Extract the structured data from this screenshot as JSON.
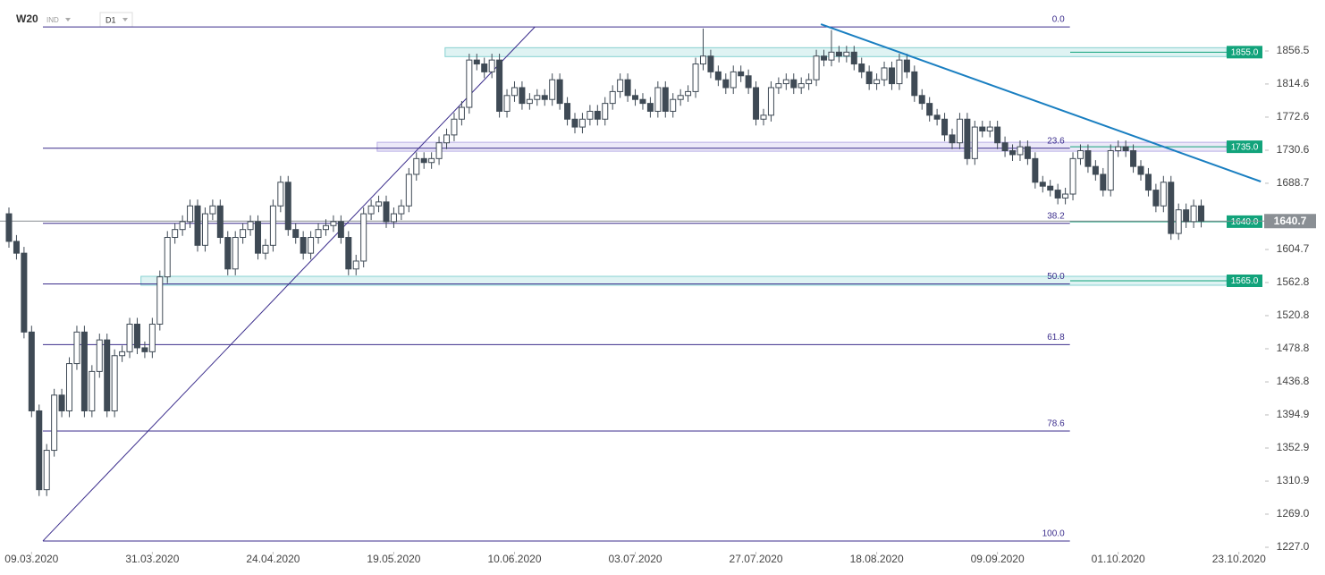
{
  "chart_data": {
    "type": "candlestick",
    "symbol": "W20",
    "market": "IND",
    "interval": "D1",
    "ylim": [
      1223.6,
      1909.8
    ],
    "yticks": [
      {
        "value": 1227.0,
        "label": "1227.0"
      },
      {
        "value": 1269.0,
        "label": "1269.0"
      },
      {
        "value": 1310.9,
        "label": "1310.9"
      },
      {
        "value": 1352.9,
        "label": "1352.9"
      },
      {
        "value": 1394.9,
        "label": "1394.9"
      },
      {
        "value": 1436.8,
        "label": "1436.8"
      },
      {
        "value": 1478.8,
        "label": "1478.8"
      },
      {
        "value": 1520.8,
        "label": "1520.8"
      },
      {
        "value": 1562.8,
        "label": "1562.8"
      },
      {
        "value": 1604.7,
        "label": "1604.7"
      },
      {
        "value": 1688.7,
        "label": "1688.7"
      },
      {
        "value": 1730.6,
        "label": "1730.6"
      },
      {
        "value": 1772.6,
        "label": "1772.6"
      },
      {
        "value": 1814.6,
        "label": "1814.6"
      },
      {
        "value": 1856.5,
        "label": "1856.5"
      }
    ],
    "xticks": [
      {
        "value": 3,
        "label": "09.03.2020"
      },
      {
        "value": 19,
        "label": "31.03.2020"
      },
      {
        "value": 35,
        "label": "24.04.2020"
      },
      {
        "value": 51,
        "label": "19.05.2020"
      },
      {
        "value": 67,
        "label": "10.06.2020"
      },
      {
        "value": 83,
        "label": "03.07.2020"
      },
      {
        "value": 99,
        "label": "27.07.2020"
      },
      {
        "value": 115,
        "label": "18.08.2020"
      },
      {
        "value": 131,
        "label": "09.09.2020"
      },
      {
        "value": 147,
        "label": "01.10.2020"
      },
      {
        "value": 163,
        "label": "23.10.2020"
      }
    ],
    "up_color": "#ffffff",
    "down_color": "#3f4a55",
    "open": [
      1650,
      1615,
      1600,
      1500,
      1400,
      1300,
      1350,
      1420,
      1400,
      1460,
      1500,
      1400,
      1450,
      1490,
      1400,
      1470,
      1475,
      1510,
      1480,
      1475,
      1510,
      1570,
      1620,
      1630,
      1640,
      1660,
      1610,
      1650,
      1660,
      1620,
      1580,
      1620,
      1630,
      1640,
      1600,
      1610,
      1660,
      1690,
      1630,
      1620,
      1600,
      1620,
      1630,
      1635,
      1640,
      1620,
      1580,
      1590,
      1650,
      1660,
      1665,
      1640,
      1650,
      1660,
      1700,
      1720,
      1715,
      1720,
      1740,
      1750,
      1770,
      1785,
      1845,
      1840,
      1830,
      1845,
      1780,
      1800,
      1810,
      1790,
      1795,
      1800,
      1795,
      1820,
      1790,
      1770,
      1760,
      1770,
      1780,
      1770,
      1790,
      1805,
      1820,
      1800,
      1795,
      1790,
      1780,
      1810,
      1780,
      1795,
      1800,
      1805,
      1840,
      1850,
      1830,
      1820,
      1810,
      1830,
      1825,
      1810,
      1770,
      1775,
      1810,
      1815,
      1820,
      1810,
      1815,
      1820,
      1850,
      1845,
      1855,
      1850,
      1855,
      1840,
      1830,
      1815,
      1820,
      1835,
      1815,
      1845,
      1830,
      1800,
      1790,
      1775,
      1770,
      1750,
      1740,
      1770,
      1720,
      1760,
      1755,
      1760,
      1740,
      1730,
      1725,
      1735,
      1720,
      1690,
      1685,
      1680,
      1670,
      1675,
      1720,
      1730,
      1710,
      1700,
      1680,
      1730,
      1735,
      1730,
      1710,
      1700,
      1680,
      1660,
      1690,
      1625,
      1655,
      1640,
      1660
    ],
    "high": [
      1658,
      1623,
      1608,
      1508,
      1408,
      1358,
      1428,
      1428,
      1468,
      1508,
      1508,
      1458,
      1498,
      1498,
      1478,
      1483,
      1518,
      1518,
      1488,
      1518,
      1578,
      1628,
      1638,
      1648,
      1668,
      1668,
      1658,
      1668,
      1668,
      1628,
      1628,
      1638,
      1648,
      1648,
      1618,
      1668,
      1698,
      1698,
      1638,
      1628,
      1628,
      1638,
      1643,
      1648,
      1648,
      1628,
      1598,
      1658,
      1668,
      1673,
      1673,
      1658,
      1668,
      1708,
      1728,
      1728,
      1728,
      1748,
      1758,
      1778,
      1793,
      1853,
      1853,
      1848,
      1853,
      1853,
      1808,
      1818,
      1818,
      1803,
      1808,
      1808,
      1828,
      1828,
      1798,
      1778,
      1778,
      1788,
      1788,
      1798,
      1813,
      1828,
      1828,
      1808,
      1803,
      1798,
      1818,
      1818,
      1803,
      1808,
      1813,
      1848,
      1885,
      1858,
      1838,
      1828,
      1838,
      1838,
      1833,
      1818,
      1783,
      1818,
      1823,
      1828,
      1828,
      1823,
      1828,
      1858,
      1858,
      1883,
      1863,
      1863,
      1863,
      1848,
      1838,
      1828,
      1843,
      1843,
      1853,
      1853,
      1838,
      1808,
      1798,
      1783,
      1778,
      1758,
      1778,
      1778,
      1768,
      1768,
      1768,
      1768,
      1748,
      1738,
      1743,
      1743,
      1728,
      1698,
      1693,
      1688,
      1683,
      1728,
      1738,
      1738,
      1718,
      1708,
      1738,
      1743,
      1743,
      1738,
      1718,
      1708,
      1688,
      1698,
      1698,
      1663,
      1663,
      1668,
      1668
    ],
    "low": [
      1607,
      1592,
      1492,
      1392,
      1292,
      1292,
      1342,
      1392,
      1392,
      1452,
      1392,
      1392,
      1442,
      1392,
      1392,
      1462,
      1467,
      1472,
      1467,
      1467,
      1502,
      1562,
      1612,
      1622,
      1632,
      1602,
      1602,
      1642,
      1612,
      1572,
      1572,
      1612,
      1622,
      1592,
      1592,
      1602,
      1652,
      1622,
      1612,
      1592,
      1592,
      1612,
      1622,
      1627,
      1612,
      1572,
      1572,
      1582,
      1642,
      1652,
      1632,
      1632,
      1642,
      1652,
      1692,
      1707,
      1707,
      1712,
      1732,
      1742,
      1762,
      1777,
      1832,
      1822,
      1822,
      1772,
      1772,
      1792,
      1782,
      1782,
      1787,
      1787,
      1787,
      1782,
      1762,
      1752,
      1752,
      1762,
      1762,
      1762,
      1782,
      1797,
      1792,
      1787,
      1782,
      1772,
      1772,
      1772,
      1772,
      1787,
      1792,
      1797,
      1832,
      1822,
      1812,
      1802,
      1802,
      1817,
      1802,
      1762,
      1762,
      1767,
      1802,
      1807,
      1802,
      1802,
      1807,
      1812,
      1837,
      1837,
      1842,
      1842,
      1832,
      1822,
      1807,
      1807,
      1812,
      1807,
      1807,
      1822,
      1792,
      1782,
      1767,
      1762,
      1742,
      1732,
      1732,
      1712,
      1712,
      1747,
      1747,
      1732,
      1722,
      1717,
      1717,
      1712,
      1682,
      1677,
      1672,
      1662,
      1662,
      1667,
      1712,
      1702,
      1692,
      1672,
      1672,
      1722,
      1722,
      1702,
      1692,
      1672,
      1652,
      1652,
      1617,
      1617,
      1632,
      1632,
      1632.7
    ],
    "close": [
      1615,
      1600,
      1500,
      1400,
      1300,
      1350,
      1420,
      1400,
      1460,
      1500,
      1400,
      1450,
      1490,
      1400,
      1470,
      1475,
      1510,
      1480,
      1475,
      1510,
      1570,
      1620,
      1630,
      1640,
      1660,
      1610,
      1650,
      1660,
      1620,
      1580,
      1620,
      1630,
      1640,
      1600,
      1610,
      1660,
      1690,
      1630,
      1620,
      1600,
      1620,
      1630,
      1635,
      1640,
      1620,
      1580,
      1590,
      1650,
      1660,
      1665,
      1640,
      1650,
      1660,
      1700,
      1720,
      1715,
      1720,
      1740,
      1750,
      1770,
      1785,
      1845,
      1840,
      1830,
      1845,
      1780,
      1800,
      1810,
      1790,
      1795,
      1800,
      1795,
      1820,
      1790,
      1770,
      1760,
      1770,
      1780,
      1770,
      1790,
      1805,
      1820,
      1800,
      1795,
      1790,
      1780,
      1810,
      1780,
      1795,
      1800,
      1805,
      1840,
      1850,
      1830,
      1820,
      1810,
      1830,
      1825,
      1810,
      1770,
      1775,
      1810,
      1815,
      1820,
      1810,
      1815,
      1820,
      1850,
      1845,
      1855,
      1850,
      1855,
      1840,
      1830,
      1815,
      1820,
      1835,
      1815,
      1845,
      1830,
      1800,
      1790,
      1775,
      1770,
      1750,
      1740,
      1770,
      1720,
      1760,
      1755,
      1760,
      1740,
      1730,
      1725,
      1735,
      1720,
      1690,
      1685,
      1680,
      1670,
      1675,
      1720,
      1730,
      1710,
      1700,
      1680,
      1730,
      1735,
      1730,
      1710,
      1700,
      1680,
      1660,
      1690,
      1625,
      1655,
      1640,
      1660,
      1640.7
    ],
    "fibonacci": {
      "color": "#3b2d8c",
      "start": {
        "index": 4.5,
        "price": 1235
      },
      "end": {
        "index": 69.7,
        "price": 1887
      },
      "extend_to_index": 140.6,
      "levels": [
        {
          "label": "0.0",
          "price": 1887
        },
        {
          "label": "23.6",
          "price": 1733.1
        },
        {
          "label": "38.2",
          "price": 1637.9
        },
        {
          "label": "50.0",
          "price": 1561
        },
        {
          "label": "61.8",
          "price": 1484.1
        },
        {
          "label": "78.6",
          "price": 1374.5
        },
        {
          "label": "100.0",
          "price": 1235
        }
      ]
    },
    "levels": {
      "values": [
        1855,
        1735,
        1640,
        1565
      ],
      "value_labels": [
        "1855.0",
        "1735.0",
        "1640.0",
        "1565.0"
      ],
      "start_index": [
        57.8,
        48.8,
        140.6,
        17.5
      ],
      "zone_colors": [
        "#6cc7c7",
        "#a99be0",
        "#12a37b",
        "#6cc7c7"
      ],
      "label_color": "#12a37b"
    },
    "trendline": {
      "color": "#1a7fc1",
      "start": {
        "index": 107.6,
        "price": 1890.5
      },
      "end": {
        "index": 165.9,
        "price": 1690.9
      }
    }
  }
}
